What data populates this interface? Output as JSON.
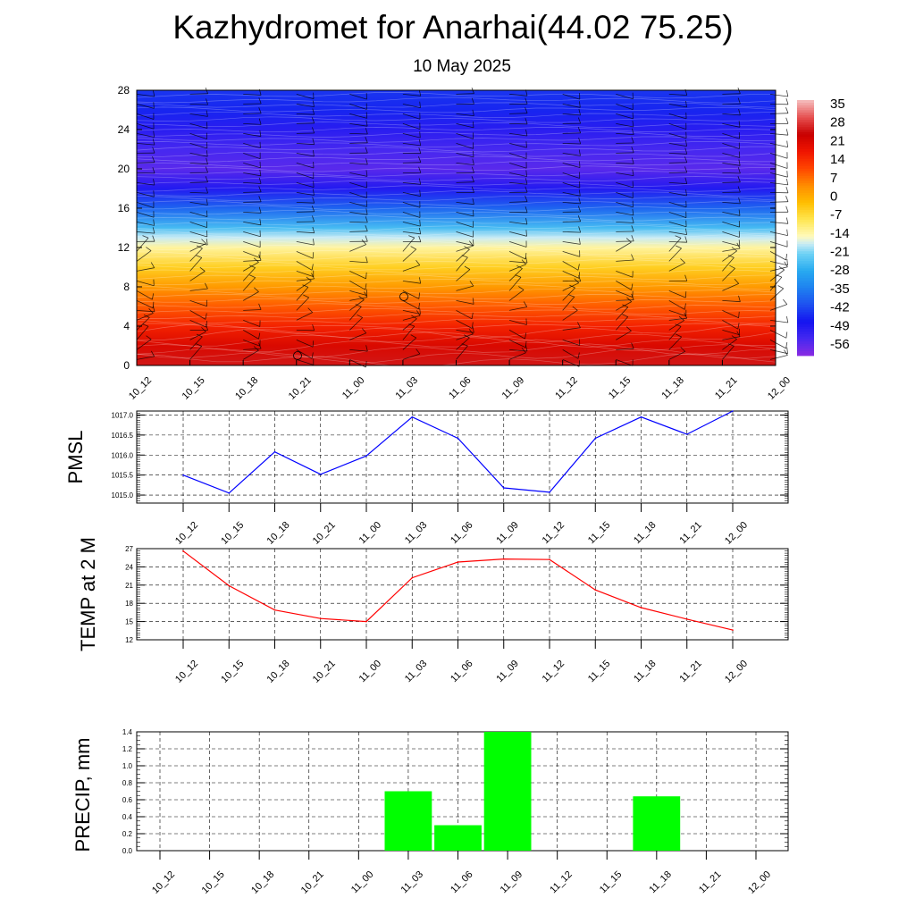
{
  "header": {
    "title": "Kazhydromet for Anarhai(44.02 75.25)",
    "subtitle": "10 May 2025"
  },
  "colors": {
    "pmsl_line": "#0000ff",
    "temp_line": "#ff0000",
    "precip_bar": "#00ff00",
    "grid": "#000000"
  },
  "chart_data": [
    {
      "type": "heatmap",
      "name": "cross-section",
      "x_categories": [
        "10_12",
        "10_15",
        "10_18",
        "10_21",
        "11_00",
        "11_03",
        "11_06",
        "11_09",
        "11_12",
        "11_15",
        "11_18",
        "11_21",
        "12_00"
      ],
      "y_ticks": [
        0,
        4,
        8,
        12,
        16,
        20,
        24,
        28
      ],
      "ylim": [
        0,
        28
      ],
      "levels": [
        0,
        2,
        4,
        6,
        8,
        10,
        12,
        13,
        14,
        16,
        18,
        20,
        22,
        24,
        26,
        28
      ],
      "level_temps": [
        30,
        25,
        19,
        12,
        5,
        -3,
        -12,
        -17,
        -25,
        -39,
        -51,
        -58,
        -56,
        -52,
        -47,
        -45
      ],
      "colorbar_labels": [
        "35",
        "28",
        "21",
        "14",
        "7",
        "0",
        "-7",
        "-14",
        "-21",
        "-28",
        "-35",
        "-42",
        "-49",
        "-56"
      ],
      "colorbar_range": [
        -63,
        42
      ],
      "wind_barbs": true
    },
    {
      "type": "line",
      "name": "pmsl",
      "ylabel": "PMSL",
      "categories": [
        "10_12",
        "10_15",
        "10_18",
        "10_21",
        "11_00",
        "11_03",
        "11_06",
        "11_09",
        "11_12",
        "11_15",
        "11_18",
        "11_21",
        "12_00"
      ],
      "values": [
        1015.5,
        1015.05,
        1016.08,
        1015.52,
        1015.98,
        1016.95,
        1016.42,
        1015.18,
        1015.07,
        1016.42,
        1016.95,
        1016.52,
        1017.1
      ],
      "ylim": [
        1014.8,
        1017.1
      ],
      "yticks": [
        1015.0,
        1015.5,
        1016.0,
        1016.5,
        1017.0
      ],
      "ytick_labels": [
        "1015.0",
        "1015.5",
        "1016.0",
        "1016.5",
        "1017.0"
      ],
      "grid": true
    },
    {
      "type": "line",
      "name": "temp",
      "ylabel": "TEMP at 2 M",
      "categories": [
        "10_12",
        "10_15",
        "10_18",
        "10_21",
        "11_00",
        "11_03",
        "11_06",
        "11_09",
        "11_12",
        "11_15",
        "11_18",
        "11_21",
        "12_00"
      ],
      "values": [
        26.6,
        20.9,
        16.9,
        15.5,
        15.0,
        22.2,
        24.8,
        25.3,
        25.2,
        20.2,
        17.3,
        15.4,
        13.6
      ],
      "ylim": [
        12,
        27
      ],
      "yticks": [
        12,
        15,
        18,
        21,
        24,
        27
      ],
      "ytick_labels": [
        "12",
        "15",
        "18",
        "21",
        "24",
        "27"
      ],
      "grid": true
    },
    {
      "type": "bar",
      "name": "precip",
      "ylabel": "PRECIP, mm",
      "categories": [
        "10_12",
        "10_15",
        "10_18",
        "10_21",
        "11_00",
        "11_03",
        "11_06",
        "11_09",
        "11_12",
        "11_15",
        "11_18",
        "11_21",
        "12_00"
      ],
      "values": [
        0,
        0,
        0,
        0,
        0,
        0.7,
        0.3,
        1.4,
        0,
        0,
        0.64,
        0,
        0
      ],
      "ylim": [
        0,
        1.4
      ],
      "yticks": [
        0,
        0.2,
        0.4,
        0.6,
        0.8,
        1.0,
        1.2,
        1.4
      ],
      "ytick_labels": [
        "0.0",
        "0.2",
        "0.4",
        "0.6",
        "0.8",
        "1.0",
        "1.2",
        "1.4"
      ],
      "grid": true
    }
  ]
}
